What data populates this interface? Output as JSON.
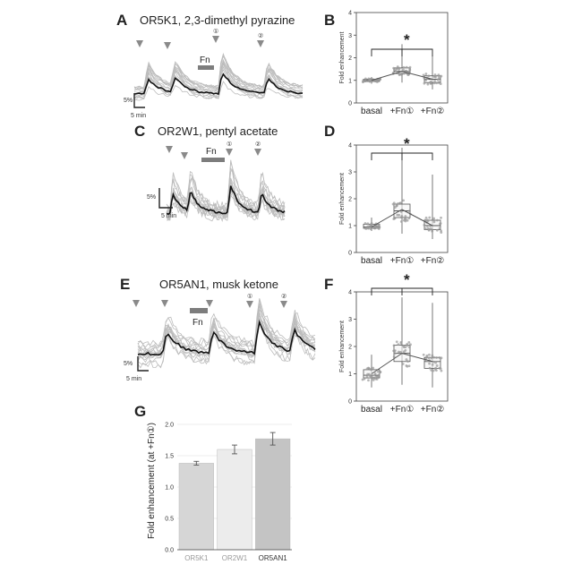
{
  "colors": {
    "mean_trace": "#111111",
    "cell_trace": "#bdbdbd",
    "marker": "#8a8a8a",
    "fn_bar": "#7d7d7d",
    "bar_1": "#d6d6d6",
    "bar_2": "#ececec",
    "bar_3": "#c4c4c4"
  },
  "panels": {
    "A": {
      "letter": "A",
      "title": "OR5K1, 2,3-dimethyl pyrazine",
      "fn_label": "Fn",
      "scale_y": "5%",
      "scale_x": "5 min",
      "marker_1": "①",
      "marker_2": "②"
    },
    "C": {
      "letter": "C",
      "title": "OR2W1, pentyl acetate",
      "fn_label": "Fn",
      "scale_y": "5%",
      "scale_x": "5 min",
      "marker_1": "①",
      "marker_2": "②"
    },
    "E": {
      "letter": "E",
      "title": "OR5AN1,   musk ketone",
      "fn_label": "Fn",
      "scale_y": "5%",
      "scale_x": "5 min",
      "marker_1": "①",
      "marker_2": "②"
    },
    "B": {
      "letter": "B",
      "star": "*"
    },
    "D": {
      "letter": "D",
      "star": "*"
    },
    "F": {
      "letter": "F",
      "star": "*"
    },
    "G": {
      "letter": "G"
    }
  },
  "chart_data": [
    {
      "panel": "B",
      "type": "box",
      "ylabel": "Fold enhancement",
      "categories": [
        "basal",
        "+Fn①",
        "+Fn②"
      ],
      "ylim": [
        0,
        4
      ],
      "yticks": [
        0,
        1,
        2,
        3,
        4
      ],
      "boxes": [
        {
          "min": 0.85,
          "q1": 0.95,
          "median": 1.0,
          "q3": 1.05,
          "max": 1.15
        },
        {
          "min": 0.9,
          "q1": 1.3,
          "median": 1.4,
          "q3": 1.55,
          "max": 2.6
        },
        {
          "min": 0.6,
          "q1": 0.9,
          "median": 1.05,
          "q3": 1.2,
          "max": 2.1
        }
      ],
      "means": [
        1.0,
        1.4,
        1.05
      ]
    },
    {
      "panel": "D",
      "type": "box",
      "ylabel": "Fold enhancement",
      "categories": [
        "basal",
        "+Fn①",
        "+Fn②"
      ],
      "ylim": [
        0,
        4
      ],
      "yticks": [
        0,
        1,
        2,
        3,
        4
      ],
      "boxes": [
        {
          "min": 0.8,
          "q1": 0.9,
          "median": 0.95,
          "q3": 1.05,
          "max": 1.3
        },
        {
          "min": 0.7,
          "q1": 1.3,
          "median": 1.55,
          "q3": 1.8,
          "max": 3.9
        },
        {
          "min": 0.5,
          "q1": 0.85,
          "median": 1.0,
          "q3": 1.2,
          "max": 2.9
        }
      ],
      "means": [
        0.95,
        1.6,
        1.0
      ]
    },
    {
      "panel": "F",
      "type": "box",
      "ylabel": "Fold enhancement",
      "categories": [
        "basal",
        "+Fn①",
        "+Fn②"
      ],
      "ylim": [
        0,
        4
      ],
      "yticks": [
        0,
        1,
        2,
        3,
        4
      ],
      "boxes": [
        {
          "min": 0.5,
          "q1": 0.85,
          "median": 0.95,
          "q3": 1.15,
          "max": 1.7
        },
        {
          "min": 0.6,
          "q1": 1.45,
          "median": 1.75,
          "q3": 2.05,
          "max": 3.8
        },
        {
          "min": 0.5,
          "q1": 1.2,
          "median": 1.45,
          "q3": 1.6,
          "max": 3.6
        }
      ],
      "means": [
        1.0,
        1.75,
        1.45
      ]
    },
    {
      "panel": "G",
      "type": "bar",
      "ylabel": "Fold enhancement (at +Fn①)",
      "categories": [
        "OR5K1",
        "OR2W1",
        "OR5AN1"
      ],
      "values": [
        1.38,
        1.6,
        1.77
      ],
      "errors": [
        0.03,
        0.07,
        0.1
      ],
      "ylim": [
        0,
        2.2
      ],
      "yticks": [
        0.0,
        0.5,
        1.0,
        1.5,
        2.0
      ],
      "ytick_labels": [
        "0.0",
        "0.5",
        "1.0",
        "1.5",
        "2.0"
      ]
    }
  ]
}
